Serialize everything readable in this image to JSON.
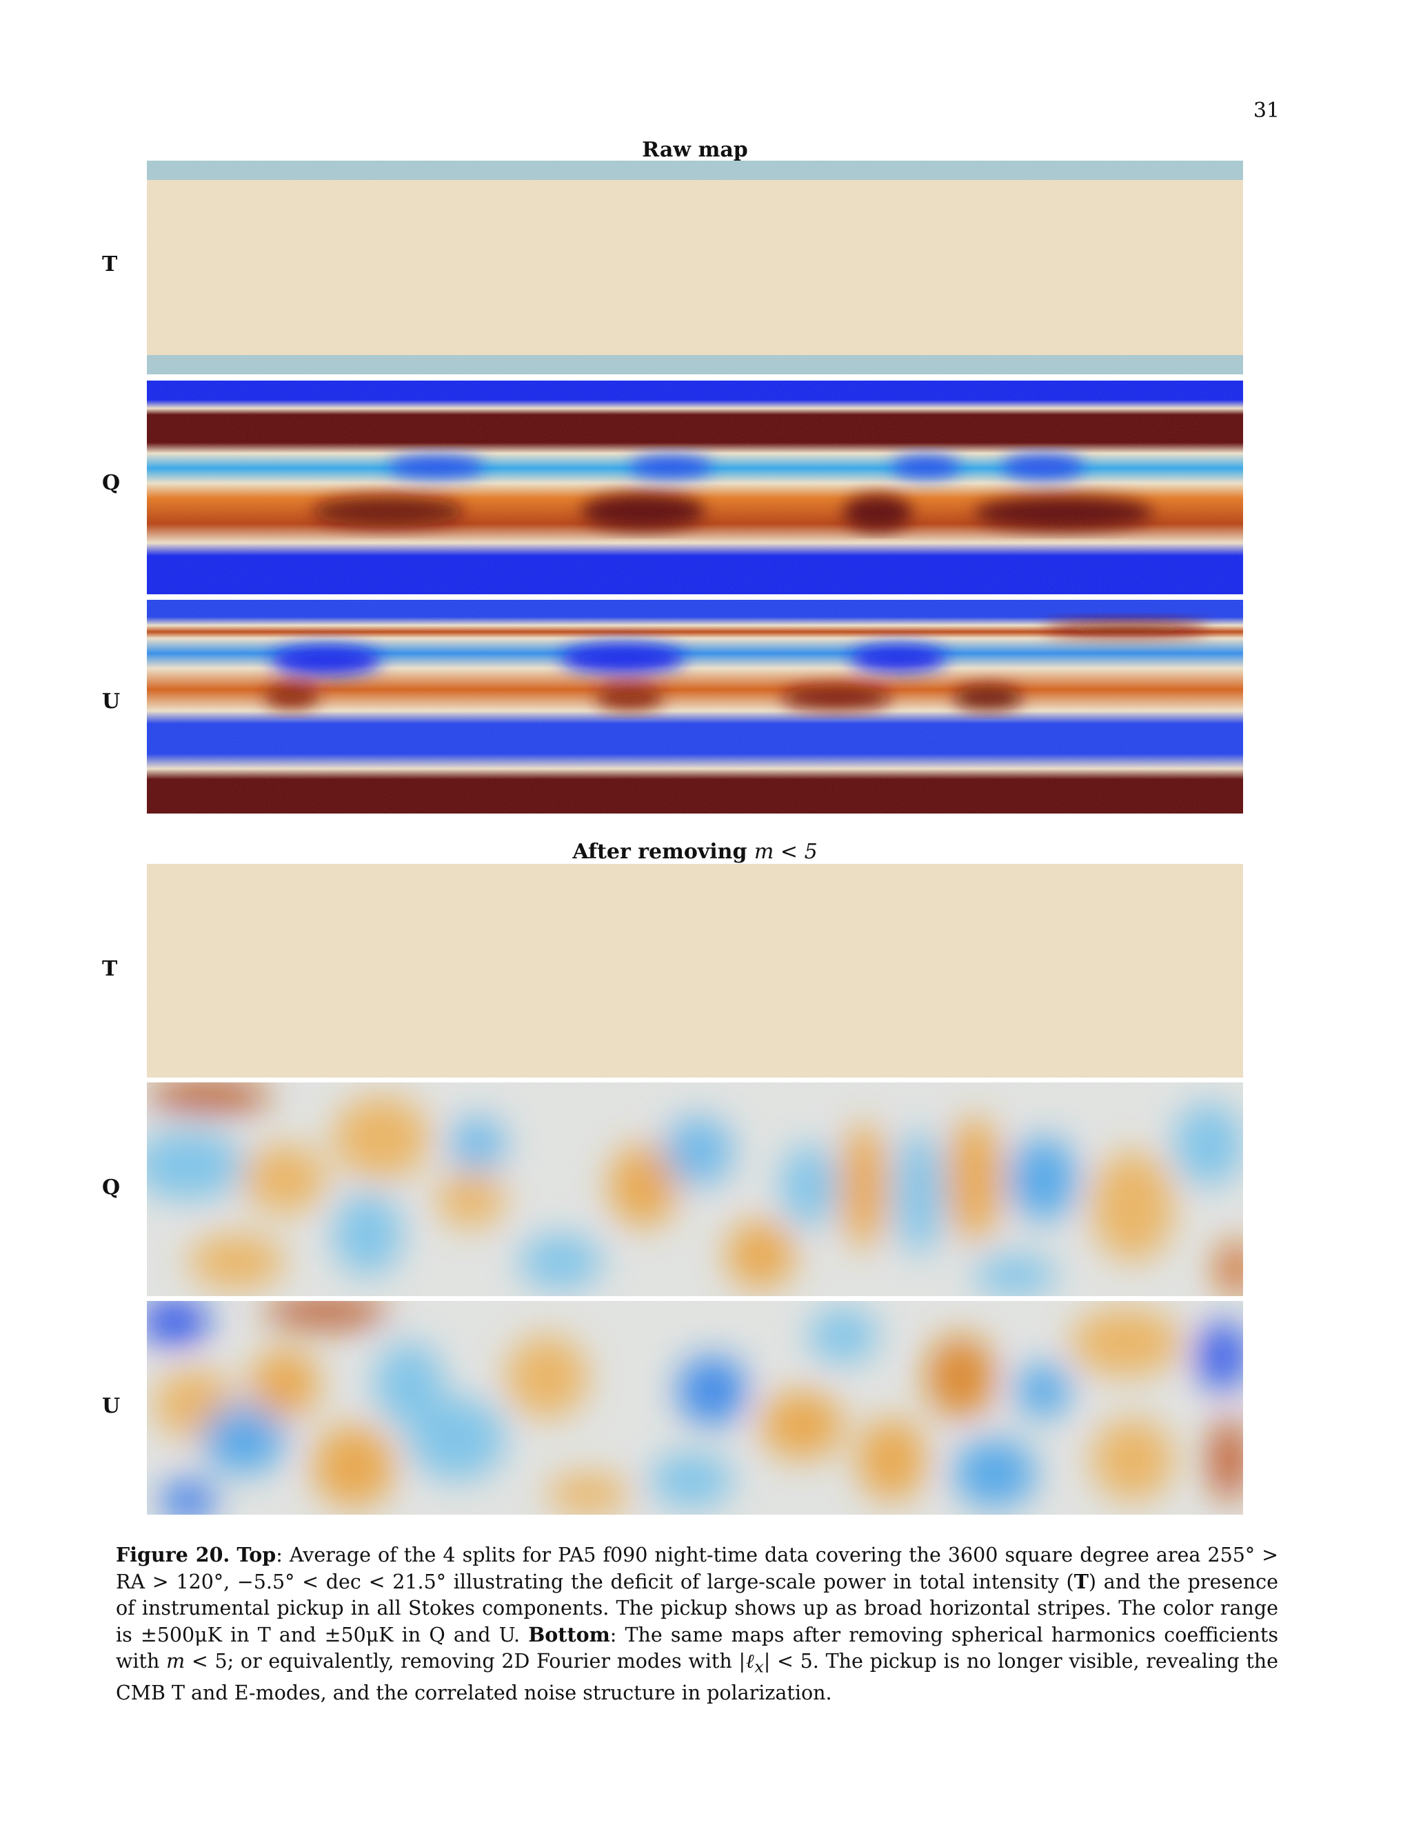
{
  "page_number": "31",
  "panels": [
    {
      "title": "Raw map",
      "maps": [
        {
          "label": "T",
          "colormap": "diverging-blue-white-orange",
          "colors": [
            "#0a1cf0",
            "#1ea0f0",
            "#f0e8d8",
            "#f08a14",
            "#5a0000"
          ]
        },
        {
          "label": "Q",
          "colormap": "diverging-blue-white-orange"
        },
        {
          "label": "U",
          "colormap": "diverging-blue-white-orange"
        }
      ]
    },
    {
      "title_text": "After removing ",
      "title_math": "m < 5",
      "maps": [
        {
          "label": "T"
        },
        {
          "label": "Q"
        },
        {
          "label": "U"
        }
      ]
    }
  ],
  "caption": {
    "figure": "Figure 20.",
    "top": "Top",
    "text1": ": Average of the 4 splits for PA5 f090 night-time data covering the 3600 square degree area 255° > RA > 120°, −5.5° < dec < 21.5° illustrating the deficit of large-scale power in total intensity (",
    "T": "T",
    "text2": ") and the presence of instrumental pickup in all Stokes components. The pickup shows up as broad horizontal stripes. The color range is ±500μK in T and ±50μK in Q and U. ",
    "bottom": "Bottom",
    "text3": ": The same maps after removing spherical harmonics coefficients with ",
    "m": "m",
    "text4": " < 5; or equivalently, removing 2D Fourier modes with |",
    "ell": "ℓ",
    "sub": "x",
    "text5": "| < 5. The pickup is no longer visible, revealing the CMB T and E-modes, and the correlated noise structure in polarization."
  }
}
